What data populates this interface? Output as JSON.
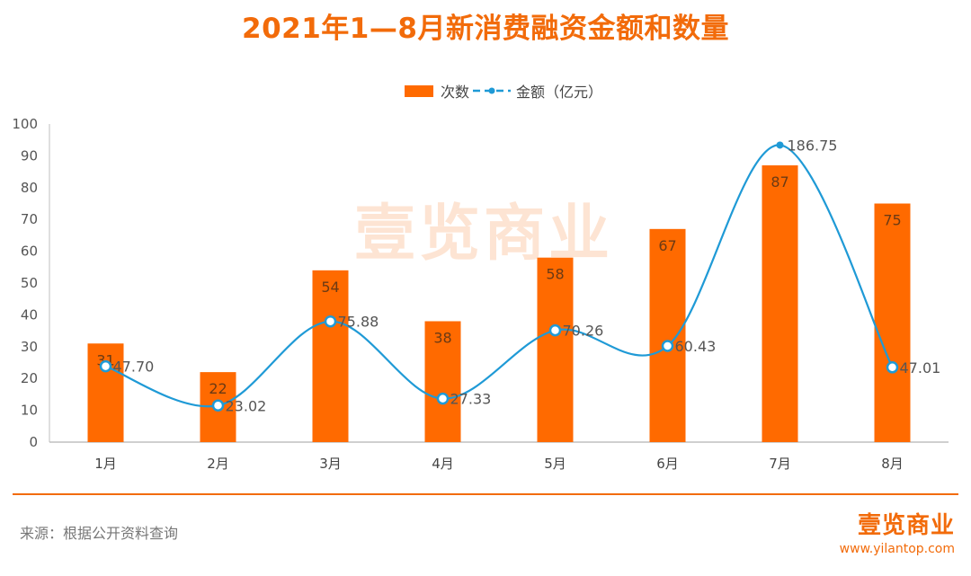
{
  "title": "2021年1—8月新消费融资金额和数量",
  "legend": {
    "bar_label": "次数",
    "line_label": "金额（亿元）"
  },
  "watermark": "壹览商业",
  "source": "来源：根据公开资料查询",
  "brand": {
    "logo": "壹览商业",
    "url": "www.yilantop.com"
  },
  "colors": {
    "accent": "#f26b0a",
    "bar": "#ff6a00",
    "line": "#1f9ad6"
  },
  "chart_data": {
    "type": "bar",
    "categories": [
      "1月",
      "2月",
      "3月",
      "4月",
      "5月",
      "6月",
      "7月",
      "8月"
    ],
    "series": [
      {
        "name": "次数",
        "type": "bar",
        "values": [
          31,
          22,
          54,
          38,
          58,
          67,
          87,
          75
        ]
      },
      {
        "name": "金额（亿元）",
        "type": "line",
        "values": [
          47.7,
          23.02,
          75.88,
          27.33,
          70.26,
          60.43,
          186.75,
          47.01
        ]
      }
    ],
    "value_labels": [
      "47.70",
      "23.02",
      "75.88",
      "27.33",
      "70.26",
      "60.43",
      "186.75",
      "47.01"
    ],
    "ylim": [
      0,
      100
    ],
    "yticks": [
      0,
      10,
      20,
      30,
      40,
      50,
      60,
      70,
      80,
      90,
      100
    ],
    "grid": false,
    "legend_position": "top-center"
  }
}
